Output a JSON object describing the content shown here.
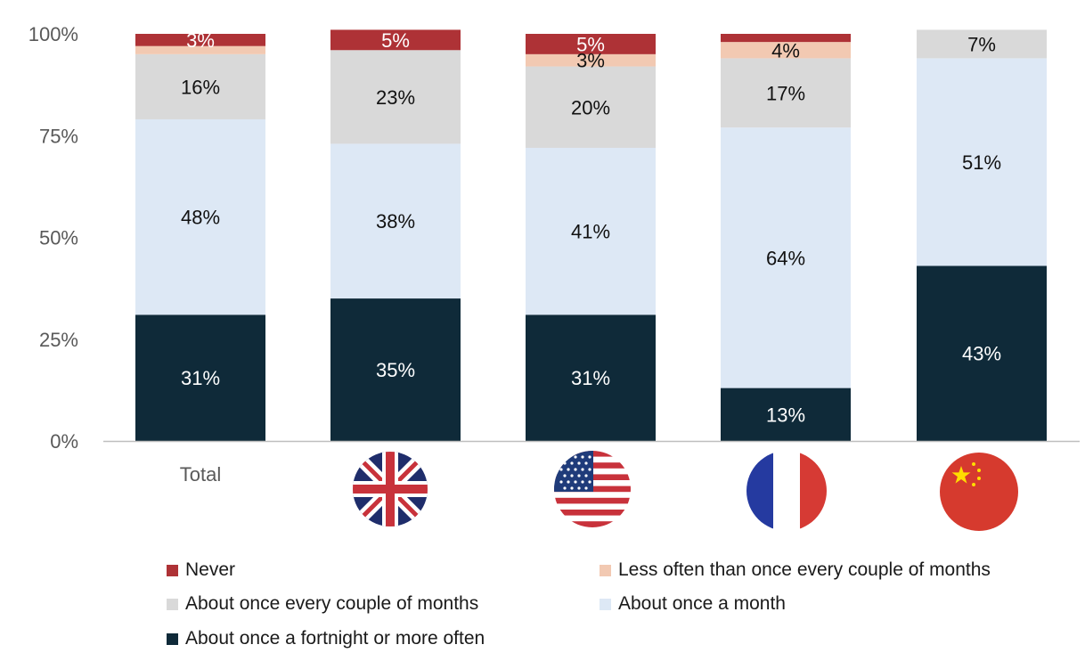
{
  "chart_data": {
    "type": "bar",
    "stacked": true,
    "percent": true,
    "categories": [
      "Total",
      "United Kingdom",
      "United States",
      "France",
      "China"
    ],
    "category_labels": [
      "Total",
      "",
      "",
      "",
      ""
    ],
    "category_icons": [
      "",
      "uk-flag-icon",
      "us-flag-icon",
      "france-flag-icon",
      "china-flag-icon"
    ],
    "ylim": [
      0,
      100
    ],
    "yticks": [
      0,
      25,
      50,
      75,
      100
    ],
    "ytick_labels": [
      "0%",
      "25%",
      "50%",
      "75%",
      "100%"
    ],
    "grid": false,
    "legend_position": "bottom",
    "series": [
      {
        "name": "About once a fortnight or more often",
        "color": "#0f2a39",
        "label_color": "#ffffff",
        "values": [
          31,
          35,
          31,
          13,
          43
        ],
        "labels": [
          "31%",
          "35%",
          "31%",
          "13%",
          "43%"
        ]
      },
      {
        "name": "About once a month",
        "color": "#dde8f5",
        "label_color": "#111111",
        "values": [
          48,
          38,
          41,
          64,
          51
        ],
        "labels": [
          "48%",
          "38%",
          "41%",
          "64%",
          "51%"
        ]
      },
      {
        "name": "About once every couple of months",
        "color": "#d9d9d9",
        "label_color": "#111111",
        "values": [
          16,
          23,
          20,
          17,
          7
        ],
        "labels": [
          "16%",
          "23%",
          "20%",
          "17%",
          "7%"
        ]
      },
      {
        "name": "Less often than once every couple of months",
        "color": "#f2c9b2",
        "label_color": "#111111",
        "values": [
          2,
          0,
          3,
          4,
          0
        ],
        "labels": [
          "",
          "",
          "3%",
          "4%",
          ""
        ]
      },
      {
        "name": "Never",
        "color": "#ae3236",
        "label_color": "#ffffff",
        "values": [
          3,
          5,
          5,
          2,
          0
        ],
        "labels": [
          "3%",
          "5%",
          "5%",
          "",
          ""
        ]
      }
    ],
    "legend_order": [
      "Never",
      "Less often than once every couple of months",
      "About once every couple of months",
      "About once a month",
      "About once a fortnight or more often"
    ]
  }
}
